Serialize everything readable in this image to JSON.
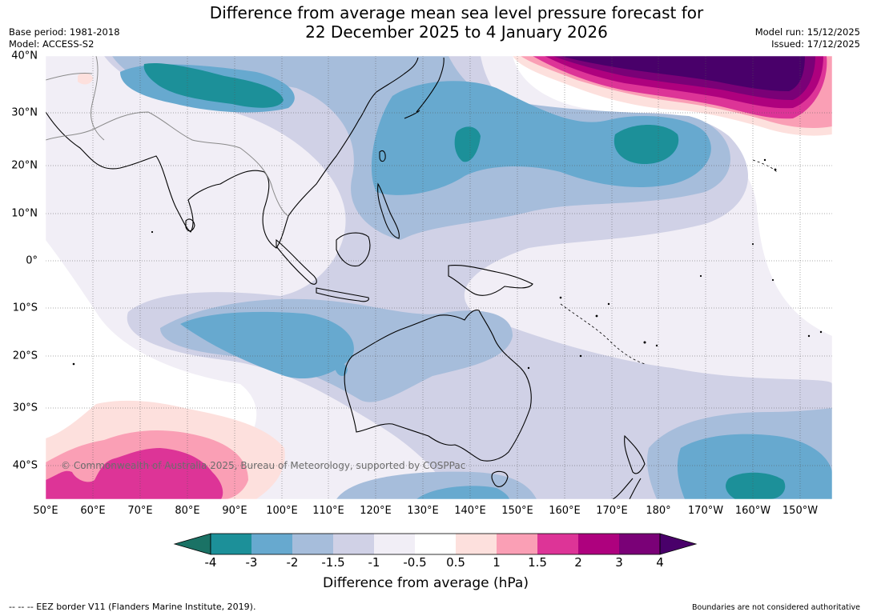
{
  "header": {
    "title_line1": "Difference from average mean sea level pressure forecast for",
    "title_line2": "22 December 2025 to 4 January 2026",
    "base_period": "Base period: 1981-2018",
    "model": "Model: ACCESS-S2",
    "model_run": "Model run: 15/12/2025",
    "issued": "Issued: 17/12/2025"
  },
  "map": {
    "x_ticks": [
      "50°E",
      "60°E",
      "70°E",
      "80°E",
      "90°E",
      "100°E",
      "110°E",
      "120°E",
      "130°E",
      "140°E",
      "150°E",
      "160°E",
      "170°E",
      "180°",
      "170°W",
      "160°W",
      "150°W"
    ],
    "y_ticks": [
      "40°N",
      "30°N",
      "20°N",
      "10°N",
      "0°",
      "10°S",
      "20°S",
      "30°S",
      "40°S"
    ],
    "copyright": "© Commonwealth of Australia 2025, Bureau of Meteorology, supported by COSPPac"
  },
  "colorbar": {
    "label": "Difference from average (hPa)",
    "tick_labels": [
      "-4",
      "-3",
      "-2",
      "-1.5",
      "-1",
      "-0.5",
      "0.5",
      "1",
      "1.5",
      "2",
      "3",
      "4"
    ],
    "colors": [
      "#1a7265",
      "#1c9099",
      "#67a9cf",
      "#a6bddb",
      "#d0d1e6",
      "#f1eef6",
      "#ffffff",
      "#fde0dd",
      "#fa9fb5",
      "#dd3497",
      "#ae017e",
      "#7a0177",
      "#49006a"
    ]
  },
  "footer": {
    "eez_note": "--  --  -- EEZ border V11 (Flanders Marine Institute, 2019).",
    "boundaries_note": "Boundaries are not considered authoritative"
  }
}
